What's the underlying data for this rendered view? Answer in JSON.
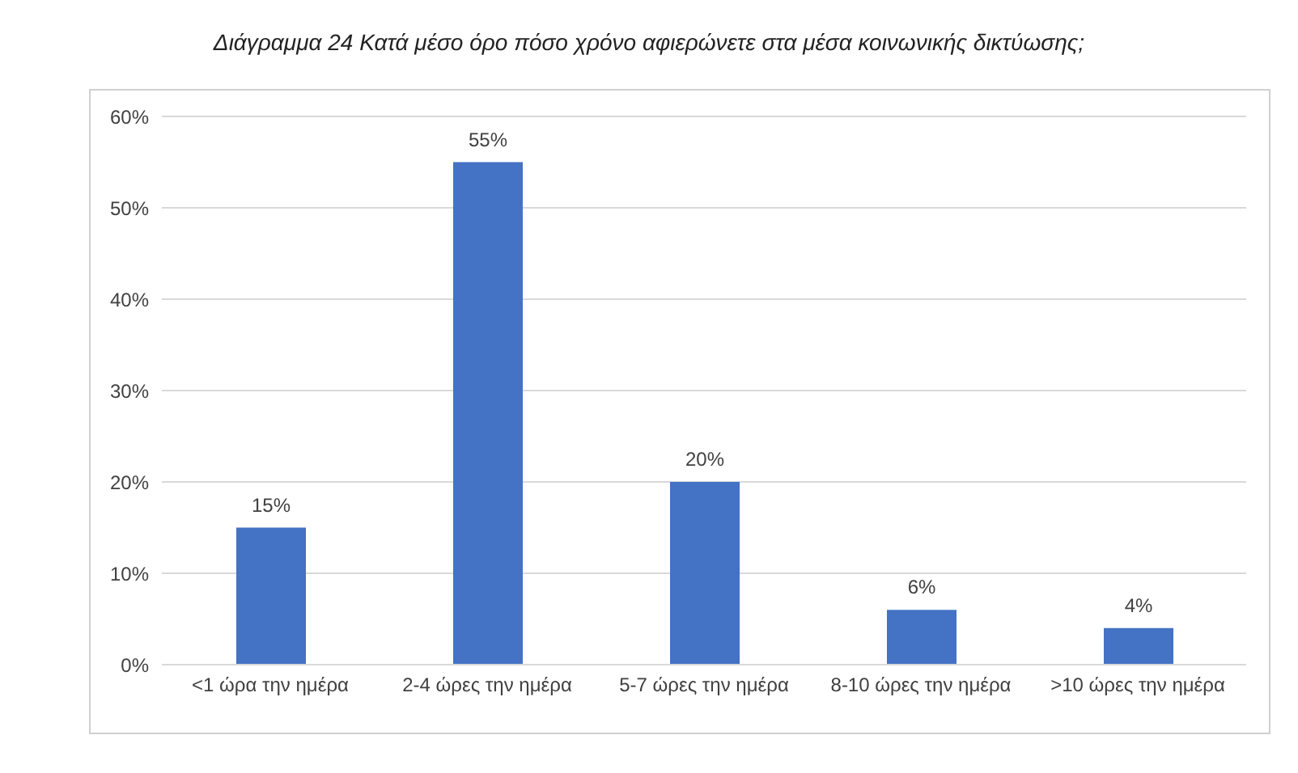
{
  "chart_data": {
    "type": "bar",
    "title": "Διάγραμμα 24 Κατά μέσο όρο πόσο χρόνο αφιερώνετε στα μέσα κοινωνικής δικτύωσης;",
    "categories": [
      "<1 ώρα την ημέρα",
      "2-4 ώρες την ημέρα",
      "5-7 ώρες την ημέρα",
      "8-10 ώρες την ημέρα",
      ">10 ώρες την ημέρα"
    ],
    "values": [
      15,
      55,
      20,
      6,
      4
    ],
    "value_labels": [
      "15%",
      "55%",
      "20%",
      "6%",
      "4%"
    ],
    "color": "#4472c4",
    "ylim": [
      0,
      60
    ],
    "yticks": [
      {
        "value": 0,
        "label": "0%"
      },
      {
        "value": 10,
        "label": "10%"
      },
      {
        "value": 20,
        "label": "20%"
      },
      {
        "value": 30,
        "label": "30%"
      },
      {
        "value": 40,
        "label": "40%"
      },
      {
        "value": 50,
        "label": "50%"
      },
      {
        "value": 60,
        "label": "60%"
      }
    ],
    "grid": "y"
  }
}
